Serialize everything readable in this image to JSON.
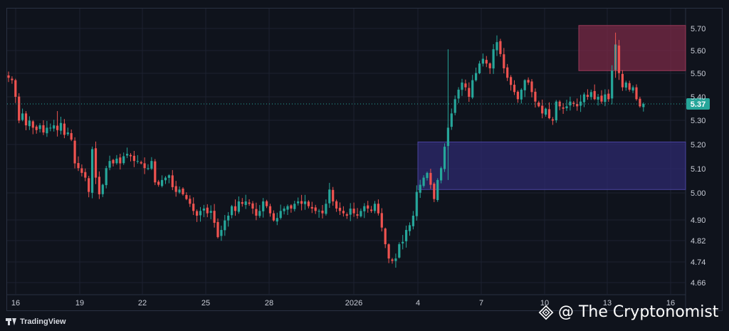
{
  "chart_data": {
    "type": "candlestick",
    "title": "",
    "colors": {
      "up": "#26a69a",
      "down": "#ef5350",
      "background": "#0f131c",
      "grid": "#1c2230",
      "current_price_label": "#26a69a",
      "supply_zone": "#7a2a45",
      "demand_zone": "#2e2a6e"
    },
    "y_axis": {
      "ticks": [
        "5.70",
        "5.60",
        "5.50",
        "5.40",
        "5.30",
        "5.20",
        "5.10",
        "5.00",
        "4.90",
        "4.82",
        "4.74",
        "4.66"
      ],
      "ylim": [
        4.63,
        5.74
      ]
    },
    "x_axis": {
      "ticks": [
        "16",
        "19",
        "22",
        "25",
        "28",
        "2026",
        "4",
        "7",
        "10",
        "13",
        "16"
      ]
    },
    "current_price": "5.37",
    "zones": [
      {
        "name": "supply",
        "x_start": "12",
        "x_end": "16",
        "low": 5.51,
        "high": 5.7
      },
      {
        "name": "demand",
        "x_start": "4",
        "x_end": "16",
        "low": 5.01,
        "high": 5.21
      }
    ],
    "candle_closes": [
      5.48,
      5.47,
      5.4,
      5.3,
      5.33,
      5.28,
      5.3,
      5.27,
      5.26,
      5.28,
      5.25,
      5.27,
      5.27,
      5.28,
      5.26,
      5.29,
      5.24,
      5.25,
      5.22,
      5.12,
      5.1,
      5.08,
      5.06,
      5.0,
      5.18,
      5.06,
      4.99,
      5.03,
      5.1,
      5.13,
      5.12,
      5.14,
      5.12,
      5.15,
      5.16,
      5.15,
      5.13,
      5.13,
      5.12,
      5.1,
      5.1,
      5.13,
      5.04,
      5.03,
      5.05,
      5.06,
      5.07,
      5.02,
      5.0,
      5.01,
      4.99,
      4.97,
      4.95,
      4.92,
      4.9,
      4.92,
      4.93,
      4.91,
      4.92,
      4.87,
      4.81,
      4.84,
      4.88,
      4.9,
      4.94,
      4.92,
      4.96,
      4.95,
      4.96,
      4.95,
      4.93,
      4.9,
      4.92,
      4.96,
      4.94,
      4.91,
      4.88,
      4.89,
      4.92,
      4.93,
      4.94,
      4.93,
      4.95,
      4.96,
      4.95,
      4.96,
      4.94,
      4.93,
      4.92,
      4.92,
      4.91,
      4.95,
      5.01,
      4.96,
      4.93,
      4.92,
      4.91,
      4.9,
      4.93,
      4.91,
      4.9,
      4.92,
      4.94,
      4.93,
      4.92,
      4.95,
      4.91,
      4.85,
      4.78,
      4.72,
      4.71,
      4.72,
      4.78,
      4.79,
      4.84,
      4.86,
      4.9,
      5.0,
      5.03,
      5.06,
      5.08,
      5.03,
      4.97,
      5.05,
      5.1,
      5.19,
      5.27,
      5.33,
      5.39,
      5.43,
      5.46,
      5.44,
      5.4,
      5.47,
      5.5,
      5.54,
      5.56,
      5.54,
      5.52,
      5.6,
      5.63,
      5.58,
      5.52,
      5.48,
      5.45,
      5.42,
      5.39,
      5.43,
      5.47,
      5.46,
      5.42,
      5.38,
      5.36,
      5.33,
      5.35,
      5.31,
      5.3,
      5.38,
      5.36,
      5.35,
      5.36,
      5.38,
      5.37,
      5.36,
      5.38,
      5.41,
      5.4,
      5.42,
      5.39,
      5.4,
      5.38,
      5.41,
      5.39,
      5.51,
      5.62,
      5.5,
      5.44,
      5.46,
      5.43,
      5.44,
      5.39,
      5.36,
      5.37
    ]
  },
  "branding": {
    "logo_text": "TradingView",
    "watermark_text": "@ The Cryptonomist"
  }
}
